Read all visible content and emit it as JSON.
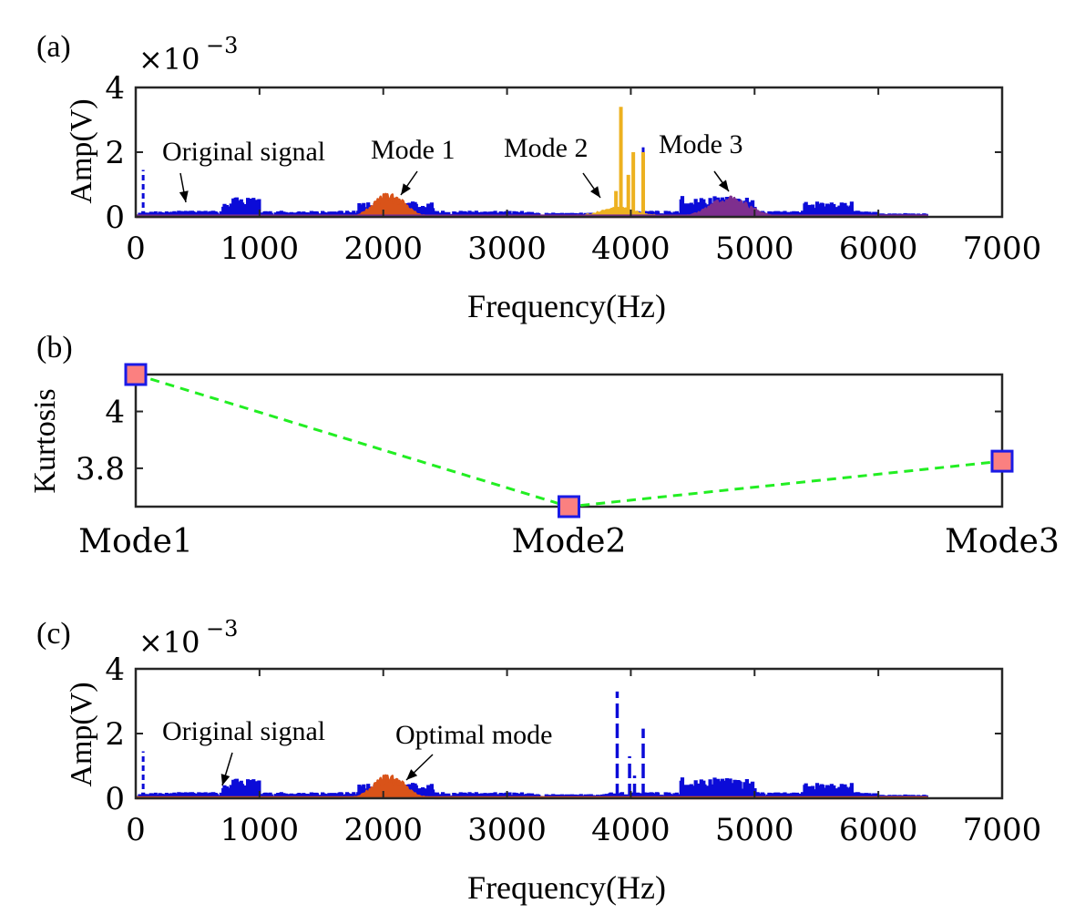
{
  "colors": {
    "original": "#0b0bd8",
    "mode1": "#d95319",
    "mode2": "#edb120",
    "mode3": "#7e2f8e",
    "kurtosis_line": "#22ee22",
    "marker_fill": "#fb8080",
    "marker_edge": "#1a1ae6",
    "axis": "#262626"
  },
  "chart_data": [
    {
      "panel_label": "(a)",
      "type": "line",
      "xlabel": "Frequency(Hz)",
      "ylabel": "Amp(V)",
      "exponent_label": "×10",
      "exponent_power": "−3",
      "xlim": [
        0,
        7000
      ],
      "ylim": [
        0,
        4
      ],
      "xticks": [
        0,
        1000,
        2000,
        3000,
        4000,
        5000,
        6000,
        7000
      ],
      "yticks": [
        0,
        2,
        4
      ],
      "series": [
        {
          "name": "Original signal",
          "role": "original",
          "x_range": [
            0,
            6400
          ]
        },
        {
          "name": "Mode 1",
          "role": "mode1",
          "center": 2050,
          "width": 400,
          "peak": 0.7
        },
        {
          "name": "Mode 2",
          "role": "mode2",
          "peaks": [
            [
              3880,
              0.8
            ],
            [
              3920,
              3.4
            ],
            [
              3980,
              1.3
            ],
            [
              4020,
              2.0
            ],
            [
              4100,
              2.0
            ]
          ]
        },
        {
          "name": "Mode 3",
          "role": "mode3",
          "center": 4800,
          "width": 500,
          "peak": 0.6
        }
      ],
      "annotations": [
        {
          "text": "Original signal",
          "target": [
            380,
            0.35
          ]
        },
        {
          "text": "Mode 1",
          "target": [
            2130,
            0.45
          ]
        },
        {
          "text": "Mode 2",
          "target": [
            3800,
            0.4
          ]
        },
        {
          "text": "Mode 3",
          "target": [
            4830,
            0.5
          ]
        }
      ]
    },
    {
      "panel_label": "(b)",
      "type": "line",
      "xlabel": "",
      "ylabel": "Kurtosis",
      "categories": [
        "Mode1",
        "Mode2",
        "Mode3"
      ],
      "values": [
        4.13,
        3.665,
        3.825
      ],
      "ylim": [
        3.665,
        4.13
      ],
      "yticks": [
        3.8,
        4
      ],
      "ytick_labels": [
        "3.8",
        "4"
      ]
    },
    {
      "panel_label": "(c)",
      "type": "line",
      "xlabel": "Frequency(Hz)",
      "ylabel": "Amp(V)",
      "exponent_label": "×10",
      "exponent_power": "−3",
      "xlim": [
        0,
        7000
      ],
      "ylim": [
        0,
        4
      ],
      "xticks": [
        0,
        1000,
        2000,
        3000,
        4000,
        5000,
        6000,
        7000
      ],
      "yticks": [
        0,
        2,
        4
      ],
      "series": [
        {
          "name": "Original signal",
          "role": "original",
          "x_range": [
            0,
            6400
          ]
        },
        {
          "name": "Optimal mode",
          "role": "mode1",
          "center": 2050,
          "width": 400,
          "peak": 0.7
        }
      ],
      "annotations": [
        {
          "text": "Original signal",
          "target": [
            740,
            0.3
          ]
        },
        {
          "text": "Optimal mode",
          "target": [
            2180,
            0.4
          ]
        }
      ]
    }
  ]
}
